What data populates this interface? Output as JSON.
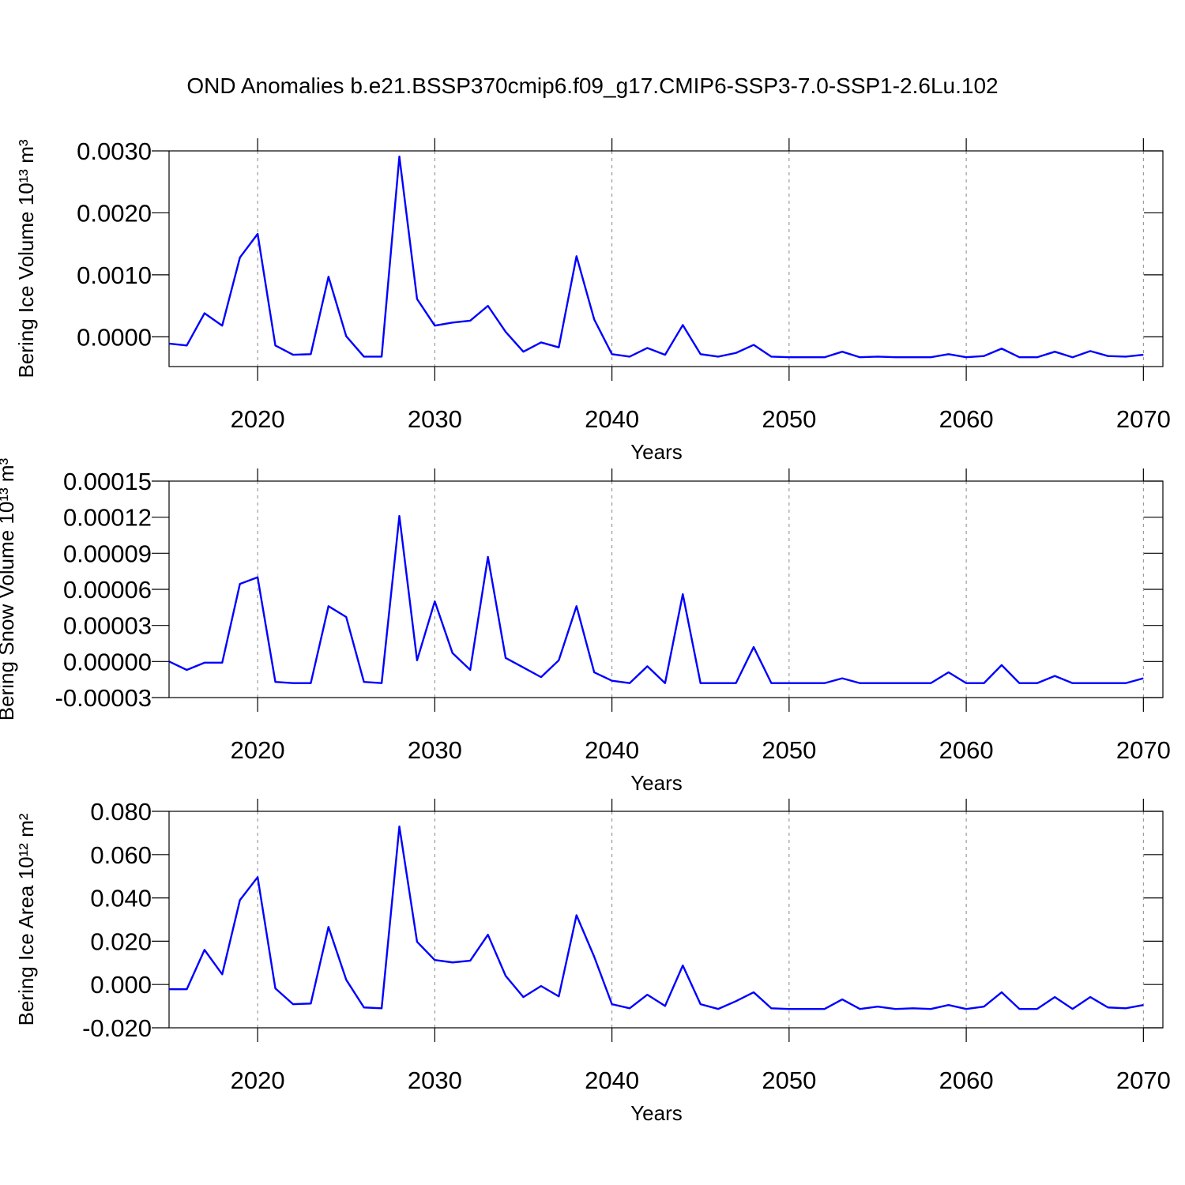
{
  "chart_data": [
    {
      "type": "line",
      "title": "OND Anomalies b.e21.BSSP370cmip6.f09_g17.CMIP6-SSP3-7.0-SSP1-2.6Lu.102",
      "xlabel": "Years",
      "ylabel": "Bering Ice Volume 10¹³ m³",
      "x": [
        2015,
        2016,
        2017,
        2018,
        2019,
        2020,
        2021,
        2022,
        2023,
        2024,
        2025,
        2026,
        2027,
        2028,
        2029,
        2030,
        2031,
        2032,
        2033,
        2034,
        2035,
        2036,
        2037,
        2038,
        2039,
        2040,
        2041,
        2042,
        2043,
        2044,
        2045,
        2046,
        2047,
        2048,
        2049,
        2050,
        2051,
        2052,
        2053,
        2054,
        2055,
        2056,
        2057,
        2058,
        2059,
        2060,
        2061,
        2062,
        2063,
        2064,
        2065,
        2066,
        2067,
        2068,
        2069,
        2070
      ],
      "series": [
        {
          "color": "#0000ff",
          "values": [
            -0.00011,
            -0.00014,
            0.00038,
            0.00018,
            0.00128,
            0.00166,
            -0.00014,
            -0.00029,
            -0.00028,
            0.00097,
            1e-05,
            -0.00032,
            -0.00032,
            0.00291,
            0.00061,
            0.00018,
            0.00023,
            0.00026,
            0.0005,
            8e-05,
            -0.00024,
            -9e-05,
            -0.00017,
            0.0013,
            0.00028,
            -0.00028,
            -0.00032,
            -0.00018,
            -0.00029,
            0.00019,
            -0.00028,
            -0.00032,
            -0.00026,
            -0.00013,
            -0.00032,
            -0.00033,
            -0.00033,
            -0.00033,
            -0.00024,
            -0.00033,
            -0.00032,
            -0.00033,
            -0.00033,
            -0.00033,
            -0.00028,
            -0.00033,
            -0.00031,
            -0.00019,
            -0.00033,
            -0.00033,
            -0.00024,
            -0.00033,
            -0.00023,
            -0.00031,
            -0.00032,
            -0.00029
          ]
        }
      ],
      "xlim": [
        2015,
        2071.1
      ],
      "xticks": [
        2020,
        2030,
        2040,
        2050,
        2060,
        2070
      ],
      "ylim": [
        -0.00048,
        0.003
      ],
      "yticks": [
        {
          "value": 0,
          "label": "0.0000"
        },
        {
          "value": 0.001,
          "label": "0.0010"
        },
        {
          "value": 0.002,
          "label": "0.0020"
        },
        {
          "value": 0.003,
          "label": "0.0030"
        }
      ],
      "xgrid": true
    },
    {
      "type": "line",
      "xlabel": "Years",
      "ylabel": "Bering Snow Volume 10¹³ m³",
      "x": [
        2015,
        2016,
        2017,
        2018,
        2019,
        2020,
        2021,
        2022,
        2023,
        2024,
        2025,
        2026,
        2027,
        2028,
        2029,
        2030,
        2031,
        2032,
        2033,
        2034,
        2035,
        2036,
        2037,
        2038,
        2039,
        2040,
        2041,
        2042,
        2043,
        2044,
        2045,
        2046,
        2047,
        2048,
        2049,
        2050,
        2051,
        2052,
        2053,
        2054,
        2055,
        2056,
        2057,
        2058,
        2059,
        2060,
        2061,
        2062,
        2063,
        2064,
        2065,
        2066,
        2067,
        2068,
        2069,
        2070
      ],
      "series": [
        {
          "color": "#0000ff",
          "values": [
            0,
            -7e-06,
            -1e-06,
            -1e-06,
            6.45e-05,
            7e-05,
            -1.7e-05,
            -1.8e-05,
            -1.8e-05,
            4.6e-05,
            3.7e-05,
            -1.7e-05,
            -1.8e-05,
            0.000121,
            1e-06,
            5e-05,
            7e-06,
            -7e-06,
            8.7e-05,
            3e-06,
            -5e-06,
            -1.3e-05,
            1e-06,
            4.6e-05,
            -9e-06,
            -1.6e-05,
            -1.8e-05,
            -4e-06,
            -1.8e-05,
            5.6e-05,
            -1.8e-05,
            -1.8e-05,
            -1.8e-05,
            1.2e-05,
            -1.8e-05,
            -1.8e-05,
            -1.8e-05,
            -1.8e-05,
            -1.4e-05,
            -1.8e-05,
            -1.8e-05,
            -1.8e-05,
            -1.8e-05,
            -1.8e-05,
            -9e-06,
            -1.8e-05,
            -1.8e-05,
            -3e-06,
            -1.8e-05,
            -1.8e-05,
            -1.2e-05,
            -1.8e-05,
            -1.8e-05,
            -1.8e-05,
            -1.8e-05,
            -1.4e-05
          ]
        }
      ],
      "xlim": [
        2015,
        2071.1
      ],
      "xticks": [
        2020,
        2030,
        2040,
        2050,
        2060,
        2070
      ],
      "ylim": [
        -3e-05,
        0.00015
      ],
      "yticks": [
        {
          "value": -3e-05,
          "label": "-0.00003"
        },
        {
          "value": 0,
          "label": "0.00000"
        },
        {
          "value": 3e-05,
          "label": "0.00003"
        },
        {
          "value": 6e-05,
          "label": "0.00006"
        },
        {
          "value": 9e-05,
          "label": "0.00009"
        },
        {
          "value": 0.00012,
          "label": "0.00012"
        },
        {
          "value": 0.00015,
          "label": "0.00015"
        }
      ],
      "xgrid": true
    },
    {
      "type": "line",
      "xlabel": "Years",
      "ylabel": "Bering Ice Area 10¹² m²",
      "x": [
        2015,
        2016,
        2017,
        2018,
        2019,
        2020,
        2021,
        2022,
        2023,
        2024,
        2025,
        2026,
        2027,
        2028,
        2029,
        2030,
        2031,
        2032,
        2033,
        2034,
        2035,
        2036,
        2037,
        2038,
        2039,
        2040,
        2041,
        2042,
        2043,
        2044,
        2045,
        2046,
        2047,
        2048,
        2049,
        2050,
        2051,
        2052,
        2053,
        2054,
        2055,
        2056,
        2057,
        2058,
        2059,
        2060,
        2061,
        2062,
        2063,
        2064,
        2065,
        2066,
        2067,
        2068,
        2069,
        2070
      ],
      "series": [
        {
          "color": "#0000ff",
          "values": [
            -0.0022,
            -0.0022,
            0.016,
            0.0047,
            0.039,
            0.0496,
            -0.0018,
            -0.0091,
            -0.0088,
            0.0266,
            0.0022,
            -0.0106,
            -0.011,
            0.073,
            0.0197,
            0.0113,
            0.0102,
            0.011,
            0.023,
            0.004,
            -0.0058,
            -0.0007,
            -0.0055,
            0.032,
            0.0128,
            -0.0091,
            -0.011,
            -0.0047,
            -0.0099,
            0.0088,
            -0.0091,
            -0.0113,
            -0.0077,
            -0.0036,
            -0.011,
            -0.0113,
            -0.0113,
            -0.0113,
            -0.0069,
            -0.0113,
            -0.0102,
            -0.0113,
            -0.011,
            -0.0113,
            -0.0095,
            -0.0113,
            -0.0102,
            -0.0036,
            -0.0113,
            -0.0113,
            -0.0058,
            -0.0113,
            -0.0058,
            -0.0106,
            -0.011,
            -0.0095
          ]
        }
      ],
      "xlim": [
        2015,
        2071.1
      ],
      "xticks": [
        2020,
        2030,
        2040,
        2050,
        2060,
        2070
      ],
      "ylim": [
        -0.02,
        0.08
      ],
      "yticks": [
        {
          "value": -0.02,
          "label": "-0.020"
        },
        {
          "value": 0,
          "label": "0.000"
        },
        {
          "value": 0.02,
          "label": "0.020"
        },
        {
          "value": 0.04,
          "label": "0.040"
        },
        {
          "value": 0.06,
          "label": "0.060"
        },
        {
          "value": 0.08,
          "label": "0.080"
        }
      ],
      "xgrid": true
    }
  ]
}
